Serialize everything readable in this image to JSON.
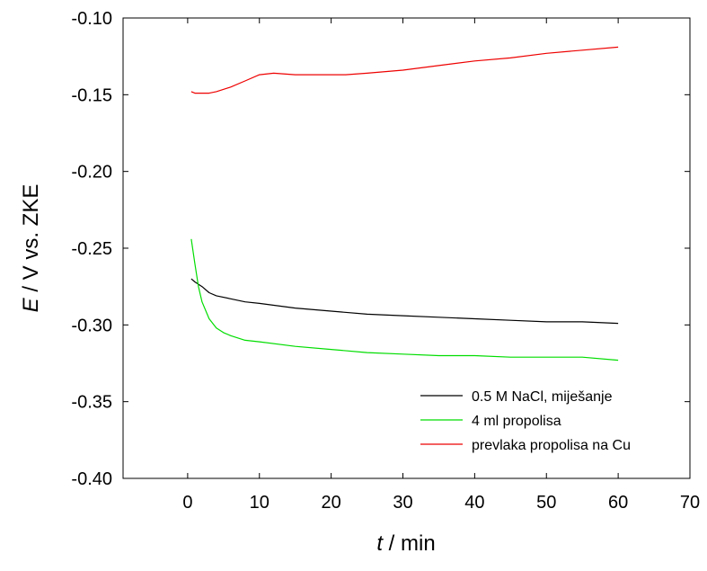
{
  "chart_data": {
    "type": "line",
    "title": "",
    "xlabel": {
      "var": "t",
      "unit": " / min"
    },
    "ylabel": {
      "var": "E",
      "unit": " / V vs. ZKE"
    },
    "xlim": [
      -9,
      70
    ],
    "ylim": [
      -0.4,
      -0.1
    ],
    "xticks": [
      "0",
      "10",
      "20",
      "30",
      "40",
      "50",
      "60",
      "70"
    ],
    "yticks": [
      "-0.10",
      "-0.15",
      "-0.20",
      "-0.25",
      "-0.30",
      "-0.35",
      "-0.40"
    ],
    "grid": false,
    "legend": "bottom-right",
    "series": [
      {
        "name": "0.5 M NaCl, miješanje",
        "color": "#000000",
        "x": [
          0.5,
          1,
          2,
          3,
          4,
          6,
          8,
          10,
          15,
          20,
          25,
          30,
          35,
          40,
          45,
          50,
          55,
          60
        ],
        "y": [
          -0.27,
          -0.272,
          -0.275,
          -0.279,
          -0.281,
          -0.283,
          -0.285,
          -0.286,
          -0.289,
          -0.291,
          -0.293,
          -0.294,
          -0.295,
          -0.296,
          -0.297,
          -0.298,
          -0.298,
          -0.299
        ]
      },
      {
        "name": "4 ml propolisa",
        "color": "#00dd00",
        "x": [
          0.5,
          1,
          1.5,
          2,
          3,
          4,
          5,
          6,
          8,
          10,
          15,
          20,
          25,
          30,
          35,
          40,
          45,
          50,
          55,
          60
        ],
        "y": [
          -0.244,
          -0.26,
          -0.275,
          -0.285,
          -0.296,
          -0.302,
          -0.305,
          -0.307,
          -0.31,
          -0.311,
          -0.314,
          -0.316,
          -0.318,
          -0.319,
          -0.32,
          -0.32,
          -0.321,
          -0.321,
          -0.321,
          -0.323
        ]
      },
      {
        "name": "prevlaka propolisa na Cu",
        "color": "#ee0000",
        "x": [
          0.5,
          1,
          2,
          3,
          4,
          6,
          8,
          10,
          12,
          15,
          20,
          22,
          25,
          30,
          35,
          40,
          45,
          50,
          55,
          60
        ],
        "y": [
          -0.148,
          -0.149,
          -0.149,
          -0.149,
          -0.148,
          -0.145,
          -0.141,
          -0.137,
          -0.136,
          -0.137,
          -0.137,
          -0.137,
          -0.136,
          -0.134,
          -0.131,
          -0.128,
          -0.126,
          -0.123,
          -0.121,
          -0.119
        ]
      }
    ]
  }
}
